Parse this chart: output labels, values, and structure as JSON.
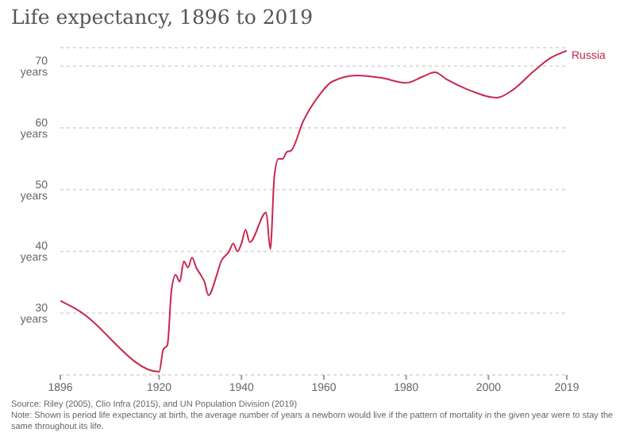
{
  "chart_data": {
    "type": "line",
    "title": "Life expectancy, 1896 to 2019",
    "x": [
      1896,
      1900,
      1920,
      1921,
      1922,
      1923,
      1924,
      1925,
      1926,
      1927,
      1928,
      1929,
      1930,
      1931,
      1932,
      1934,
      1935,
      1937,
      1938,
      1939,
      1940,
      1941,
      1942,
      1946,
      1947,
      1948,
      1949,
      1950,
      1951,
      1952,
      1955,
      1959,
      1962,
      1968,
      1974,
      1980,
      1984,
      1987,
      1990,
      1995,
      2002,
      2006,
      2011,
      2015,
      2019
    ],
    "series": [
      {
        "name": "Russia",
        "color": "#c8274d",
        "values": [
          32,
          30.6,
          20.5,
          24.1,
          24.8,
          33.7,
          36.2,
          35.1,
          38.4,
          37.4,
          39,
          37.4,
          36.3,
          35.1,
          32.9,
          36.2,
          38.3,
          40,
          41.3,
          40,
          41.3,
          43.5,
          41.5,
          46.3,
          40.4,
          52.3,
          55,
          55,
          56.1,
          56.3,
          61.1,
          65.4,
          67.5,
          68.5,
          68.1,
          67.3,
          68.3,
          69,
          67.8,
          66.2,
          64.9,
          66.2,
          69.2,
          71.3,
          72.5
        ]
      }
    ],
    "xlim": [
      1896,
      2019
    ],
    "xticks": [
      1896,
      1920,
      1940,
      1960,
      1980,
      2000,
      2019
    ],
    "ylim": [
      20,
      73
    ],
    "yticks": [
      {
        "value": 30,
        "label": "30 years"
      },
      {
        "value": 40,
        "label": "40 years"
      },
      {
        "value": 50,
        "label": "50 years"
      },
      {
        "value": 60,
        "label": "60 years"
      },
      {
        "value": 70,
        "label": "70 years"
      }
    ],
    "grid": "y",
    "marker": "none",
    "line_style": "solid",
    "annotations": [
      "Source: Riley (2005), Clio Infra (2015), and UN Population Division (2019)",
      "Note: Shown is period life expectancy at birth, the average number of years a newborn would live if the pattern of mortality in the given year were to stay the same throughout its life."
    ]
  }
}
